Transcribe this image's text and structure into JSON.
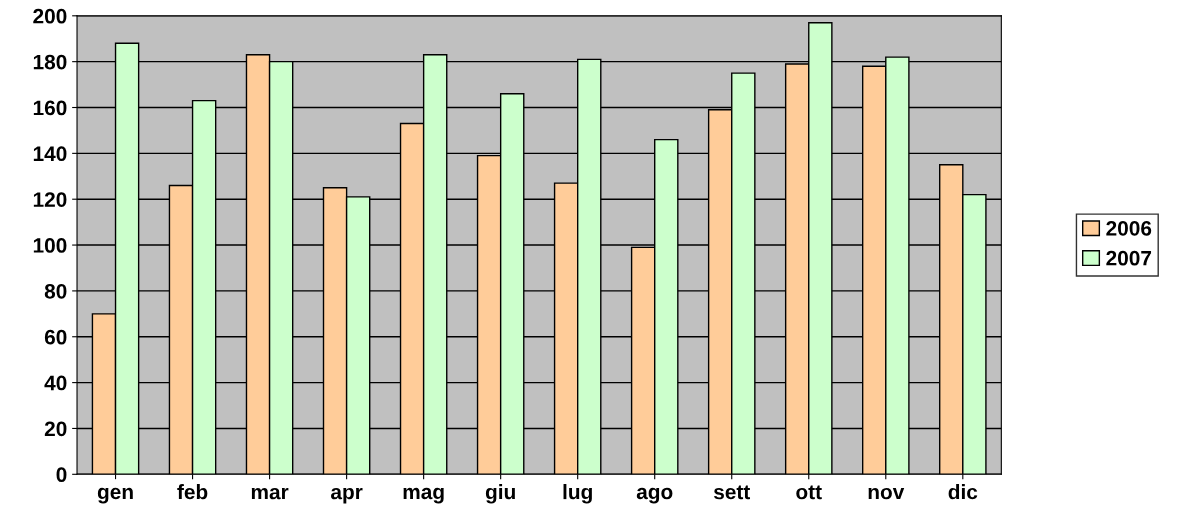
{
  "chart_data": {
    "type": "bar",
    "categories": [
      "gen",
      "feb",
      "mar",
      "apr",
      "mag",
      "giu",
      "lug",
      "ago",
      "sett",
      "ott",
      "nov",
      "dic"
    ],
    "series": [
      {
        "name": "2006",
        "color": "#ffcc99",
        "values": [
          70,
          126,
          183,
          125,
          153,
          139,
          127,
          99,
          159,
          179,
          178,
          135
        ]
      },
      {
        "name": "2007",
        "color": "#ccffcc",
        "values": [
          188,
          163,
          180,
          121,
          183,
          166,
          181,
          146,
          175,
          197,
          182,
          122
        ]
      }
    ],
    "ylim": [
      0,
      200
    ],
    "yticks": [
      0,
      20,
      40,
      60,
      80,
      100,
      120,
      140,
      160,
      180,
      200
    ],
    "grid": "y",
    "legend": "right"
  }
}
